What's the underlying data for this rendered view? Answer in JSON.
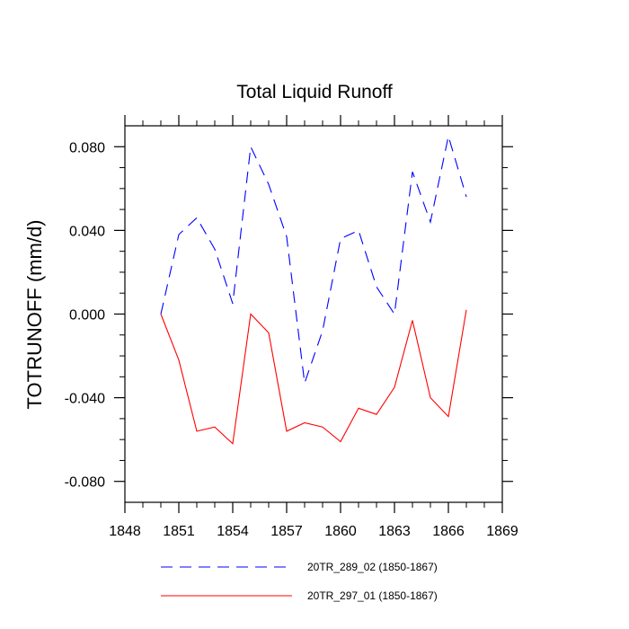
{
  "chart_data": {
    "type": "line",
    "title": "Total Liquid Runoff",
    "xlabel": "",
    "ylabel": "TOTRUNOFF  (mm/d)",
    "xlim": [
      1848,
      1869
    ],
    "ylim": [
      -0.09,
      0.09
    ],
    "xticks": [
      1848,
      1851,
      1854,
      1857,
      1860,
      1863,
      1866,
      1869
    ],
    "xtick_labels": [
      "1848",
      "1851",
      "1854",
      "1857",
      "1860",
      "1863",
      "1866",
      "1869"
    ],
    "yticks": [
      0.08,
      0.04,
      0.0,
      -0.04,
      -0.08
    ],
    "ytick_labels": [
      "0.080",
      "0.040",
      "0.000",
      "-0.040",
      "-0.080"
    ],
    "x": [
      1850,
      1851,
      1852,
      1853,
      1854,
      1855,
      1856,
      1857,
      1858,
      1859,
      1860,
      1861,
      1862,
      1863,
      1864,
      1865,
      1866,
      1867
    ],
    "series": [
      {
        "name": "20TR_289_02 (1850-1867)",
        "color": "#0000ff",
        "dash": "dashed",
        "values": [
          0.0,
          0.038,
          0.046,
          0.031,
          0.005,
          0.08,
          0.062,
          0.037,
          -0.033,
          -0.008,
          0.036,
          0.04,
          0.013,
          0.0,
          0.068,
          0.044,
          0.085,
          0.056
        ]
      },
      {
        "name": "20TR_297_01 (1850-1867)",
        "color": "#ff0000",
        "dash": "solid",
        "values": [
          0.0,
          -0.022,
          -0.056,
          -0.054,
          -0.062,
          0.0,
          -0.009,
          -0.056,
          -0.052,
          -0.054,
          -0.061,
          -0.045,
          -0.048,
          -0.035,
          -0.003,
          -0.04,
          -0.049,
          0.002
        ]
      }
    ],
    "legend_position": "bottom"
  }
}
